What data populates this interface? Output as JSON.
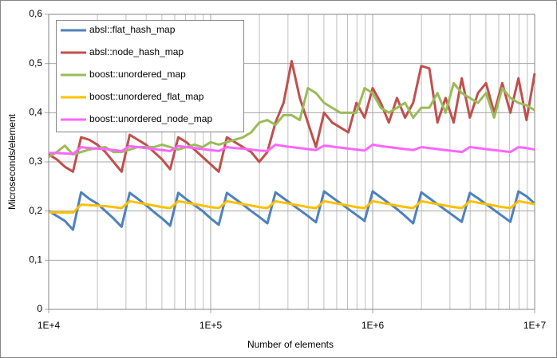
{
  "chart_data": {
    "type": "line",
    "x_label": "Number of elements",
    "y_label": "Microseconds/element",
    "xscale": "log",
    "grid": true,
    "minor_grid": true,
    "legend": "upper left",
    "xlim": [
      10000,
      10000000
    ],
    "xticks": [
      {
        "value": 10000,
        "label": "1E+4"
      },
      {
        "value": 100000,
        "label": "1E+5"
      },
      {
        "value": 1000000,
        "label": "1E+6"
      },
      {
        "value": 10000000,
        "label": "1E+7"
      }
    ],
    "ylim": [
      0,
      0.6
    ],
    "yticks": [
      0,
      {
        "value": 0.1,
        "label": "0,1"
      },
      {
        "value": 0.2,
        "label": "0,2"
      },
      {
        "value": 0.3,
        "label": "0,3"
      },
      {
        "value": 0.4,
        "label": "0,4"
      },
      {
        "value": 0.5,
        "label": "0,5"
      },
      {
        "value": 0.6,
        "label": "0,6"
      }
    ],
    "x": [
      10000,
      11220,
      12589,
      14125,
      15849,
      17783,
      19953,
      22387,
      25119,
      28184,
      31623,
      35481,
      39811,
      44668,
      50119,
      56234,
      63096,
      70795,
      79433,
      89125,
      100000,
      112200,
      125890,
      141250,
      158490,
      177830,
      199530,
      223870,
      251190,
      281840,
      316230,
      354810,
      398110,
      446680,
      501190,
      562340,
      630960,
      707950,
      794330,
      891250,
      1000000,
      1122000,
      1258900,
      1412500,
      1584900,
      1778300,
      1995300,
      2238700,
      2511900,
      2818400,
      3162300,
      3548100,
      3981100,
      4466800,
      5011900,
      5623400,
      6309600,
      7079500,
      7943300,
      8912500,
      10000000
    ],
    "series": [
      {
        "name": "absl::flat_hash_map",
        "color": "#4f81bd",
        "values": [
          0.2,
          0.19,
          0.18,
          0.162,
          0.238,
          0.225,
          0.215,
          0.2,
          0.185,
          0.168,
          0.237,
          0.225,
          0.212,
          0.198,
          0.185,
          0.17,
          0.237,
          0.224,
          0.212,
          0.2,
          0.185,
          0.172,
          0.237,
          0.225,
          0.213,
          0.2,
          0.188,
          0.175,
          0.238,
          0.226,
          0.214,
          0.202,
          0.19,
          0.177,
          0.24,
          0.228,
          0.216,
          0.204,
          0.192,
          0.18,
          0.24,
          0.228,
          0.216,
          0.204,
          0.19,
          0.175,
          0.238,
          0.226,
          0.214,
          0.202,
          0.19,
          0.178,
          0.237,
          0.226,
          0.214,
          0.202,
          0.19,
          0.178,
          0.24,
          0.23,
          0.215
        ]
      },
      {
        "name": "absl::node_hash_map",
        "color": "#c0504d",
        "values": [
          0.315,
          0.305,
          0.29,
          0.28,
          0.35,
          0.345,
          0.335,
          0.32,
          0.3,
          0.28,
          0.355,
          0.345,
          0.335,
          0.32,
          0.305,
          0.285,
          0.35,
          0.34,
          0.325,
          0.31,
          0.295,
          0.28,
          0.35,
          0.34,
          0.33,
          0.32,
          0.3,
          0.32,
          0.38,
          0.42,
          0.505,
          0.43,
          0.38,
          0.33,
          0.4,
          0.38,
          0.37,
          0.36,
          0.42,
          0.39,
          0.45,
          0.42,
          0.38,
          0.43,
          0.39,
          0.42,
          0.495,
          0.49,
          0.38,
          0.43,
          0.38,
          0.47,
          0.39,
          0.44,
          0.46,
          0.4,
          0.46,
          0.4,
          0.47,
          0.385,
          0.48
        ]
      },
      {
        "name": "boost::unordered_map",
        "color": "#9bbb59",
        "values": [
          0.31,
          0.32,
          0.333,
          0.315,
          0.32,
          0.325,
          0.328,
          0.33,
          0.32,
          0.32,
          0.325,
          0.33,
          0.33,
          0.33,
          0.335,
          0.33,
          0.325,
          0.33,
          0.335,
          0.33,
          0.34,
          0.335,
          0.34,
          0.345,
          0.35,
          0.36,
          0.38,
          0.385,
          0.375,
          0.395,
          0.395,
          0.385,
          0.45,
          0.44,
          0.42,
          0.41,
          0.4,
          0.4,
          0.4,
          0.45,
          0.44,
          0.41,
          0.4,
          0.41,
          0.42,
          0.39,
          0.41,
          0.41,
          0.44,
          0.4,
          0.46,
          0.44,
          0.43,
          0.42,
          0.44,
          0.39,
          0.45,
          0.43,
          0.42,
          0.415,
          0.405
        ]
      },
      {
        "name": "boost::unordered_flat_map",
        "color": "#ffc000",
        "values": [
          0.197,
          0.197,
          0.197,
          0.197,
          0.213,
          0.212,
          0.211,
          0.21,
          0.208,
          0.206,
          0.22,
          0.217,
          0.214,
          0.211,
          0.208,
          0.206,
          0.22,
          0.217,
          0.214,
          0.211,
          0.208,
          0.206,
          0.22,
          0.217,
          0.214,
          0.211,
          0.208,
          0.206,
          0.22,
          0.217,
          0.214,
          0.211,
          0.208,
          0.206,
          0.22,
          0.217,
          0.214,
          0.211,
          0.208,
          0.206,
          0.22,
          0.217,
          0.214,
          0.211,
          0.208,
          0.206,
          0.22,
          0.217,
          0.214,
          0.211,
          0.208,
          0.206,
          0.22,
          0.217,
          0.214,
          0.211,
          0.208,
          0.206,
          0.22,
          0.217,
          0.214
        ]
      },
      {
        "name": "boost::unordered_node_map",
        "color": "#ff66ff",
        "values": [
          0.318,
          0.318,
          0.317,
          0.316,
          0.33,
          0.328,
          0.327,
          0.326,
          0.324,
          0.322,
          0.332,
          0.33,
          0.328,
          0.326,
          0.324,
          0.322,
          0.332,
          0.33,
          0.328,
          0.326,
          0.324,
          0.322,
          0.33,
          0.328,
          0.327,
          0.325,
          0.323,
          0.322,
          0.335,
          0.332,
          0.33,
          0.328,
          0.326,
          0.324,
          0.333,
          0.331,
          0.329,
          0.327,
          0.325,
          0.323,
          0.335,
          0.332,
          0.33,
          0.328,
          0.326,
          0.324,
          0.33,
          0.328,
          0.326,
          0.324,
          0.322,
          0.32,
          0.33,
          0.328,
          0.326,
          0.324,
          0.322,
          0.32,
          0.33,
          0.328,
          0.325
        ]
      }
    ]
  }
}
